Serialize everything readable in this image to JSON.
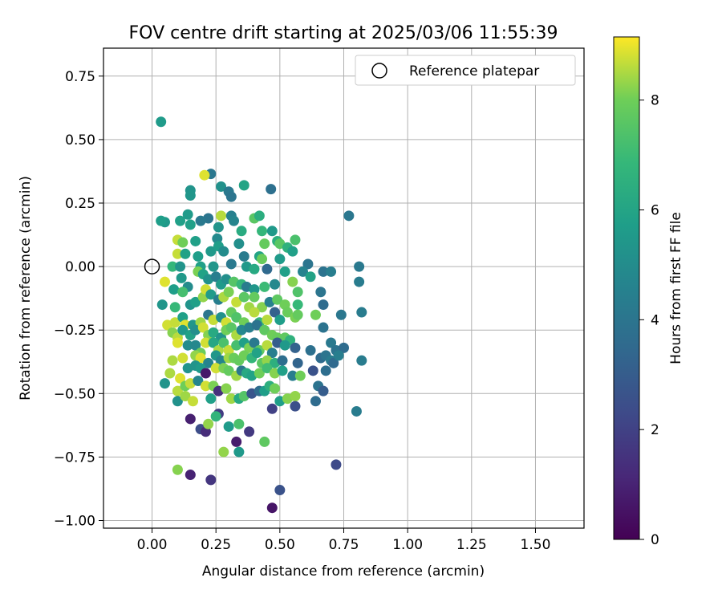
{
  "chart_data": {
    "type": "scatter",
    "title": "FOV centre drift starting at 2025/03/06 11:55:39",
    "xlabel": "Angular distance from reference (arcmin)",
    "ylabel": "Rotation from reference (arcmin)",
    "xlim": [
      -0.19,
      1.69
    ],
    "ylim": [
      -1.03,
      0.86
    ],
    "xticks": [
      0.0,
      0.25,
      0.5,
      0.75,
      1.0,
      1.25,
      1.5
    ],
    "xtick_labels": [
      "0.00",
      "0.25",
      "0.50",
      "0.75",
      "1.00",
      "1.25",
      "1.50"
    ],
    "yticks": [
      -1.0,
      -0.75,
      -0.5,
      -0.25,
      0.0,
      0.25,
      0.5,
      0.75
    ],
    "ytick_labels": [
      "−1.00",
      "−0.75",
      "−0.50",
      "−0.25",
      "0.00",
      "0.25",
      "0.50",
      "0.75"
    ],
    "grid": true,
    "legend": {
      "position": "top-right",
      "entries": [
        {
          "label": "Reference platepar",
          "marker": "open-circle"
        }
      ]
    },
    "reference_point": {
      "x": 0.0,
      "y": 0.0
    },
    "colorbar": {
      "label": "Hours from first FF file",
      "colormap": "viridis",
      "range": [
        0,
        9.15
      ],
      "ticks": [
        0,
        2,
        4,
        6,
        8
      ],
      "tick_labels": [
        "0",
        "2",
        "4",
        "6",
        "8"
      ]
    },
    "points": [
      [
        0.035,
        0.57,
        5.6
      ],
      [
        0.23,
        0.365,
        4.1
      ],
      [
        0.205,
        0.36,
        8.9
      ],
      [
        0.15,
        0.3,
        5.3
      ],
      [
        0.15,
        0.28,
        5.4
      ],
      [
        0.27,
        0.315,
        5.2
      ],
      [
        0.3,
        0.295,
        4.2
      ],
      [
        0.31,
        0.275,
        4.0
      ],
      [
        0.36,
        0.32,
        6.0
      ],
      [
        0.465,
        0.305,
        3.8
      ],
      [
        0.05,
        0.175,
        5.5
      ],
      [
        0.035,
        0.18,
        5.7
      ],
      [
        0.11,
        0.18,
        5.8
      ],
      [
        0.14,
        0.205,
        5.6
      ],
      [
        0.22,
        0.19,
        4.0
      ],
      [
        0.27,
        0.2,
        8.6
      ],
      [
        0.31,
        0.2,
        4.5
      ],
      [
        0.32,
        0.18,
        4.7
      ],
      [
        0.4,
        0.19,
        7.6
      ],
      [
        0.42,
        0.2,
        6.4
      ],
      [
        0.77,
        0.2,
        4.1
      ],
      [
        0.15,
        0.165,
        5.8
      ],
      [
        0.19,
        0.18,
        4.2
      ],
      [
        0.26,
        0.155,
        5.3
      ],
      [
        0.35,
        0.14,
        6.3
      ],
      [
        0.43,
        0.14,
        6.8
      ],
      [
        0.47,
        0.14,
        5.5
      ],
      [
        0.49,
        0.1,
        6.5
      ],
      [
        0.56,
        0.105,
        7.3
      ],
      [
        0.1,
        0.105,
        8.7
      ],
      [
        0.12,
        0.095,
        8.0
      ],
      [
        0.17,
        0.1,
        5.8
      ],
      [
        0.255,
        0.11,
        4.9
      ],
      [
        0.34,
        0.09,
        5.1
      ],
      [
        0.44,
        0.09,
        7.8
      ],
      [
        0.5,
        0.09,
        7.6
      ],
      [
        0.53,
        0.075,
        6.6
      ],
      [
        0.55,
        0.06,
        5.8
      ],
      [
        0.1,
        0.05,
        8.7
      ],
      [
        0.13,
        0.05,
        5.9
      ],
      [
        0.18,
        0.04,
        5.7
      ],
      [
        0.23,
        0.06,
        5.5
      ],
      [
        0.26,
        0.08,
        5.7
      ],
      [
        0.28,
        0.06,
        5.0
      ],
      [
        0.36,
        0.04,
        4.3
      ],
      [
        0.42,
        0.04,
        6.0
      ],
      [
        0.43,
        0.03,
        7.9
      ],
      [
        0.5,
        0.03,
        5.6
      ],
      [
        0.61,
        0.01,
        4.0
      ],
      [
        0.08,
        0.0,
        6.8
      ],
      [
        0.11,
        0.0,
        5.3
      ],
      [
        0.19,
        0.0,
        5.8
      ],
      [
        0.24,
        0.0,
        5.4
      ],
      [
        0.31,
        0.01,
        4.2
      ],
      [
        0.37,
        0.0,
        5.5
      ],
      [
        0.4,
        -0.01,
        6.2
      ],
      [
        0.45,
        -0.01,
        3.5
      ],
      [
        0.52,
        -0.02,
        5.8
      ],
      [
        0.59,
        -0.02,
        4.6
      ],
      [
        0.62,
        -0.04,
        5.9
      ],
      [
        0.67,
        -0.02,
        3.9
      ],
      [
        0.7,
        -0.02,
        4.4
      ],
      [
        0.81,
        0.0,
        4.2
      ],
      [
        0.05,
        -0.06,
        8.9
      ],
      [
        0.085,
        -0.09,
        5.7
      ],
      [
        0.115,
        -0.045,
        5.5
      ],
      [
        0.14,
        -0.08,
        5.0
      ],
      [
        0.18,
        -0.02,
        8.1
      ],
      [
        0.2,
        -0.03,
        5.9
      ],
      [
        0.22,
        -0.05,
        5.2
      ],
      [
        0.25,
        -0.04,
        4.4
      ],
      [
        0.27,
        -0.07,
        5.6
      ],
      [
        0.29,
        -0.05,
        5.1
      ],
      [
        0.32,
        -0.06,
        7.5
      ],
      [
        0.35,
        -0.07,
        6.8
      ],
      [
        0.37,
        -0.08,
        4.3
      ],
      [
        0.4,
        -0.09,
        5.4
      ],
      [
        0.44,
        -0.08,
        7.0
      ],
      [
        0.48,
        -0.07,
        4.8
      ],
      [
        0.55,
        -0.06,
        8.2
      ],
      [
        0.81,
        -0.06,
        4.3
      ],
      [
        0.04,
        -0.15,
        5.4
      ],
      [
        0.09,
        -0.16,
        6.9
      ],
      [
        0.12,
        -0.1,
        7.2
      ],
      [
        0.15,
        -0.15,
        5.3
      ],
      [
        0.17,
        -0.14,
        5.8
      ],
      [
        0.2,
        -0.12,
        8.3
      ],
      [
        0.21,
        -0.09,
        8.8
      ],
      [
        0.23,
        -0.11,
        5.6
      ],
      [
        0.26,
        -0.13,
        4.4
      ],
      [
        0.28,
        -0.12,
        8.5
      ],
      [
        0.3,
        -0.1,
        8.1
      ],
      [
        0.33,
        -0.14,
        8.7
      ],
      [
        0.36,
        -0.12,
        7.6
      ],
      [
        0.38,
        -0.16,
        8.4
      ],
      [
        0.4,
        -0.12,
        7.8
      ],
      [
        0.43,
        -0.16,
        8.2
      ],
      [
        0.46,
        -0.14,
        4.5
      ],
      [
        0.49,
        -0.13,
        7.7
      ],
      [
        0.52,
        -0.15,
        8.0
      ],
      [
        0.57,
        -0.1,
        7.4
      ],
      [
        0.57,
        -0.15,
        6.9
      ],
      [
        0.66,
        -0.1,
        4.0
      ],
      [
        0.67,
        -0.15,
        3.6
      ],
      [
        0.06,
        -0.23,
        8.8
      ],
      [
        0.09,
        -0.22,
        8.7
      ],
      [
        0.12,
        -0.2,
        5.8
      ],
      [
        0.13,
        -0.23,
        8.9
      ],
      [
        0.16,
        -0.23,
        5.4
      ],
      [
        0.19,
        -0.22,
        8.4
      ],
      [
        0.22,
        -0.19,
        4.1
      ],
      [
        0.24,
        -0.21,
        8.7
      ],
      [
        0.27,
        -0.2,
        5.2
      ],
      [
        0.29,
        -0.22,
        8.8
      ],
      [
        0.31,
        -0.18,
        7.8
      ],
      [
        0.33,
        -0.2,
        7.4
      ],
      [
        0.36,
        -0.22,
        8.0
      ],
      [
        0.4,
        -0.18,
        8.6
      ],
      [
        0.42,
        -0.22,
        6.8
      ],
      [
        0.45,
        -0.21,
        8.6
      ],
      [
        0.48,
        -0.18,
        3.2
      ],
      [
        0.5,
        -0.21,
        5.7
      ],
      [
        0.53,
        -0.18,
        7.9
      ],
      [
        0.56,
        -0.2,
        8.1
      ],
      [
        0.57,
        -0.19,
        7.8
      ],
      [
        0.64,
        -0.19,
        8.0
      ],
      [
        0.74,
        -0.19,
        4.1
      ],
      [
        0.82,
        -0.18,
        4.3
      ],
      [
        0.08,
        -0.26,
        8.2
      ],
      [
        0.1,
        -0.28,
        8.6
      ],
      [
        0.12,
        -0.25,
        5.5
      ],
      [
        0.15,
        -0.27,
        5.9
      ],
      [
        0.17,
        -0.25,
        5.1
      ],
      [
        0.2,
        -0.24,
        8.8
      ],
      [
        0.22,
        -0.27,
        8.2
      ],
      [
        0.24,
        -0.26,
        6.2
      ],
      [
        0.27,
        -0.28,
        5.3
      ],
      [
        0.29,
        -0.25,
        8.0
      ],
      [
        0.31,
        -0.24,
        7.6
      ],
      [
        0.33,
        -0.27,
        8.5
      ],
      [
        0.35,
        -0.25,
        4.8
      ],
      [
        0.38,
        -0.24,
        4.4
      ],
      [
        0.41,
        -0.23,
        3.9
      ],
      [
        0.44,
        -0.25,
        7.7
      ],
      [
        0.47,
        -0.27,
        8.0
      ],
      [
        0.49,
        -0.28,
        7.9
      ],
      [
        0.52,
        -0.28,
        7.7
      ],
      [
        0.54,
        -0.29,
        6.6
      ],
      [
        0.67,
        -0.24,
        3.9
      ],
      [
        0.1,
        -0.3,
        8.9
      ],
      [
        0.14,
        -0.31,
        5.0
      ],
      [
        0.17,
        -0.31,
        4.8
      ],
      [
        0.19,
        -0.34,
        7.9
      ],
      [
        0.21,
        -0.3,
        8.8
      ],
      [
        0.24,
        -0.3,
        6.1
      ],
      [
        0.26,
        -0.33,
        8.5
      ],
      [
        0.28,
        -0.3,
        7.3
      ],
      [
        0.3,
        -0.33,
        8.7
      ],
      [
        0.33,
        -0.31,
        7.2
      ],
      [
        0.36,
        -0.3,
        5.8
      ],
      [
        0.38,
        -0.32,
        8.1
      ],
      [
        0.4,
        -0.3,
        4.2
      ],
      [
        0.42,
        -0.33,
        7.8
      ],
      [
        0.45,
        -0.31,
        8.6
      ],
      [
        0.47,
        -0.34,
        4.4
      ],
      [
        0.49,
        -0.3,
        3.0
      ],
      [
        0.52,
        -0.31,
        5.5
      ],
      [
        0.56,
        -0.32,
        3.2
      ],
      [
        0.62,
        -0.33,
        3.8
      ],
      [
        0.66,
        -0.36,
        3.6
      ],
      [
        0.7,
        -0.3,
        4.2
      ],
      [
        0.72,
        -0.33,
        3.9
      ],
      [
        0.75,
        -0.32,
        3.6
      ],
      [
        0.08,
        -0.37,
        8.5
      ],
      [
        0.12,
        -0.36,
        8.8
      ],
      [
        0.17,
        -0.35,
        8.3
      ],
      [
        0.19,
        -0.36,
        8.9
      ],
      [
        0.22,
        -0.38,
        4.6
      ],
      [
        0.25,
        -0.35,
        5.4
      ],
      [
        0.27,
        -0.37,
        4.7
      ],
      [
        0.3,
        -0.36,
        8.4
      ],
      [
        0.32,
        -0.36,
        7.9
      ],
      [
        0.34,
        -0.37,
        7.8
      ],
      [
        0.36,
        -0.35,
        8.0
      ],
      [
        0.39,
        -0.36,
        6.8
      ],
      [
        0.41,
        -0.34,
        5.9
      ],
      [
        0.43,
        -0.38,
        7.6
      ],
      [
        0.45,
        -0.37,
        8.3
      ],
      [
        0.48,
        -0.38,
        6.5
      ],
      [
        0.51,
        -0.37,
        3.7
      ],
      [
        0.57,
        -0.38,
        3.3
      ],
      [
        0.68,
        -0.35,
        4.0
      ],
      [
        0.7,
        -0.37,
        4.3
      ],
      [
        0.71,
        -0.38,
        3.5
      ],
      [
        0.73,
        -0.35,
        4.4
      ],
      [
        0.82,
        -0.37,
        4.3
      ],
      [
        0.07,
        -0.42,
        8.5
      ],
      [
        0.11,
        -0.44,
        8.9
      ],
      [
        0.14,
        -0.4,
        5.3
      ],
      [
        0.17,
        -0.39,
        5.3
      ],
      [
        0.19,
        -0.4,
        5.6
      ],
      [
        0.21,
        -0.42,
        0.7
      ],
      [
        0.25,
        -0.4,
        8.8
      ],
      [
        0.28,
        -0.4,
        8.1
      ],
      [
        0.3,
        -0.41,
        7.8
      ],
      [
        0.33,
        -0.43,
        8.4
      ],
      [
        0.35,
        -0.41,
        4.1
      ],
      [
        0.37,
        -0.42,
        6.2
      ],
      [
        0.39,
        -0.43,
        5.9
      ],
      [
        0.42,
        -0.42,
        8.0
      ],
      [
        0.45,
        -0.4,
        7.1
      ],
      [
        0.48,
        -0.42,
        8.2
      ],
      [
        0.51,
        -0.41,
        5.8
      ],
      [
        0.55,
        -0.43,
        4.4
      ],
      [
        0.58,
        -0.43,
        8.0
      ],
      [
        0.63,
        -0.41,
        2.6
      ],
      [
        0.68,
        -0.41,
        3.7
      ],
      [
        0.05,
        -0.46,
        5.3
      ],
      [
        0.1,
        -0.49,
        8.6
      ],
      [
        0.13,
        -0.47,
        8.0
      ],
      [
        0.15,
        -0.46,
        8.7
      ],
      [
        0.18,
        -0.45,
        4.7
      ],
      [
        0.21,
        -0.47,
        8.8
      ],
      [
        0.24,
        -0.47,
        8.1
      ],
      [
        0.26,
        -0.49,
        1.4
      ],
      [
        0.29,
        -0.48,
        8.2
      ],
      [
        0.31,
        -0.52,
        8.4
      ],
      [
        0.34,
        -0.52,
        6.2
      ],
      [
        0.36,
        -0.51,
        7.5
      ],
      [
        0.39,
        -0.5,
        2.7
      ],
      [
        0.42,
        -0.49,
        3.6
      ],
      [
        0.44,
        -0.49,
        5.7
      ],
      [
        0.46,
        -0.47,
        6.5
      ],
      [
        0.48,
        -0.48,
        8.0
      ],
      [
        0.5,
        -0.53,
        5.7
      ],
      [
        0.53,
        -0.52,
        8.2
      ],
      [
        0.56,
        -0.51,
        8.3
      ],
      [
        0.65,
        -0.47,
        3.9
      ],
      [
        0.67,
        -0.49,
        3.0
      ],
      [
        0.8,
        -0.57,
        4.3
      ],
      [
        0.1,
        -0.53,
        5.2
      ],
      [
        0.13,
        -0.51,
        8.4
      ],
      [
        0.16,
        -0.53,
        8.7
      ],
      [
        0.23,
        -0.52,
        5.8
      ],
      [
        0.26,
        -0.58,
        1.8
      ],
      [
        0.3,
        -0.63,
        5.6
      ],
      [
        0.34,
        -0.62,
        7.3
      ],
      [
        0.38,
        -0.65,
        1.7
      ],
      [
        0.47,
        -0.56,
        2.0
      ],
      [
        0.56,
        -0.55,
        2.5
      ],
      [
        0.64,
        -0.53,
        3.6
      ],
      [
        0.15,
        -0.6,
        0.9
      ],
      [
        0.19,
        -0.64,
        2.4
      ],
      [
        0.21,
        -0.65,
        1.3
      ],
      [
        0.22,
        -0.62,
        8.3
      ],
      [
        0.25,
        -0.59,
        6.7
      ],
      [
        0.28,
        -0.73,
        8.3
      ],
      [
        0.33,
        -0.69,
        0.8
      ],
      [
        0.34,
        -0.73,
        5.5
      ],
      [
        0.44,
        -0.69,
        7.7
      ],
      [
        0.1,
        -0.8,
        8.2
      ],
      [
        0.15,
        -0.82,
        1.0
      ],
      [
        0.23,
        -0.84,
        1.6
      ],
      [
        0.5,
        -0.88,
        2.6
      ],
      [
        0.47,
        -0.95,
        0.6
      ],
      [
        0.72,
        -0.78,
        2.3
      ]
    ]
  }
}
